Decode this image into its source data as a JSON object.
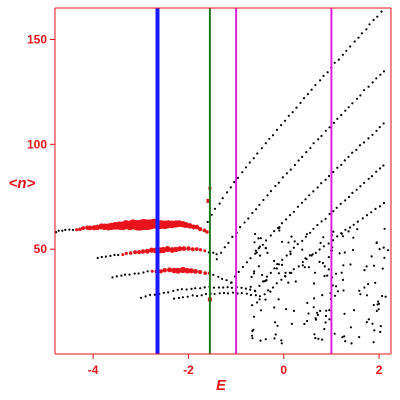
{
  "chart_data": {
    "type": "scatter",
    "xlabel": "E",
    "ylabel": "<n>",
    "xlim": [
      -4.8,
      2.25
    ],
    "ylim": [
      0,
      165
    ],
    "xticks": [
      -4,
      -2,
      0,
      2
    ],
    "yticks": [
      50,
      100,
      150
    ],
    "xtick_labels": [
      "-4",
      "-2",
      "0",
      "2"
    ],
    "ytick_labels": [
      "50",
      "100",
      "150"
    ],
    "grid": false,
    "legend": "none",
    "colors": {
      "axes": "#e8131b",
      "black_points": "#000000",
      "red_points": "#e8131b",
      "blue_line": "#1a1aff",
      "green_line": "#1f7a1f",
      "magenta_line": "#e020e0"
    },
    "vertical_lines": [
      {
        "x": -2.65,
        "color": "#1a1aff",
        "width": 4
      },
      {
        "x": -1.55,
        "color": "#1f7a1f",
        "width": 2
      },
      {
        "x": -1.0,
        "color": "#e020e0",
        "width": 2
      },
      {
        "x": 1.0,
        "color": "#e020e0",
        "width": 2
      }
    ],
    "bands": [
      {
        "x_start": -4.8,
        "x_end": -1.6,
        "y_start": 45,
        "y_end": 63,
        "apex_x": -2.3,
        "apex_y": 62,
        "curv_left": 0.6,
        "curv_right": 8,
        "n": 44,
        "jitter": 0.7,
        "red_x_min": -4.4,
        "red_x_max": -1.5
      },
      {
        "x_start": -1.6,
        "x_end": 2.05,
        "y_start": 63,
        "y_end": 163,
        "n": 46,
        "jitter": 0.6
      },
      {
        "x_start": -3.9,
        "x_end": -1.4,
        "y_start": 38,
        "y_end": 45,
        "apex_x": -2.0,
        "apex_y": 50,
        "curv_left": 1.2,
        "curv_right": 7,
        "n": 30,
        "jitter": 0.6,
        "red_x_min": -3.4,
        "red_x_max": -1.6
      },
      {
        "x_start": -1.4,
        "x_end": 2.1,
        "y_start": 45,
        "y_end": 135,
        "n": 44,
        "jitter": 0.6
      },
      {
        "x_start": -3.6,
        "x_end": -1.1,
        "y_start": 30,
        "y_end": 34,
        "apex_x": -2.1,
        "apex_y": 40,
        "curv_left": 1.5,
        "curv_right": 6,
        "n": 28,
        "jitter": 0.6,
        "red_x_min": -2.8,
        "red_x_max": -1.5
      },
      {
        "x_start": -1.1,
        "x_end": 2.1,
        "y_start": 34,
        "y_end": 110,
        "n": 40,
        "jitter": 0.6
      },
      {
        "x_start": -3.0,
        "x_end": -0.6,
        "y_start": 28,
        "y_end": 30,
        "apex_x": -1.3,
        "apex_y": 32,
        "curv_left": 1.8,
        "curv_right": 4,
        "n": 26,
        "jitter": 0.6
      },
      {
        "x_start": -0.6,
        "x_end": 2.1,
        "y_start": 30,
        "y_end": 90,
        "n": 34,
        "jitter": 0.6
      },
      {
        "x_start": -2.3,
        "x_end": -0.5,
        "y_start": 22,
        "y_end": 26,
        "apex_x": -1.1,
        "apex_y": 29,
        "curv_left": 2.0,
        "curv_right": 4,
        "n": 20,
        "jitter": 0.6
      },
      {
        "x_start": -0.5,
        "x_end": 2.1,
        "y_start": 26,
        "y_end": 72,
        "n": 30,
        "jitter": 0.6
      }
    ],
    "random_cloud": {
      "x_min": -0.7,
      "x_max": 2.2,
      "y_min": 5,
      "y_max": 62,
      "n": 170
    },
    "red_markers": [
      {
        "x": -1.58,
        "y": 73,
        "size": 4
      },
      {
        "x": -1.55,
        "y": 79,
        "size": 3
      },
      {
        "x": -1.55,
        "y": 26,
        "size": 4
      }
    ]
  }
}
